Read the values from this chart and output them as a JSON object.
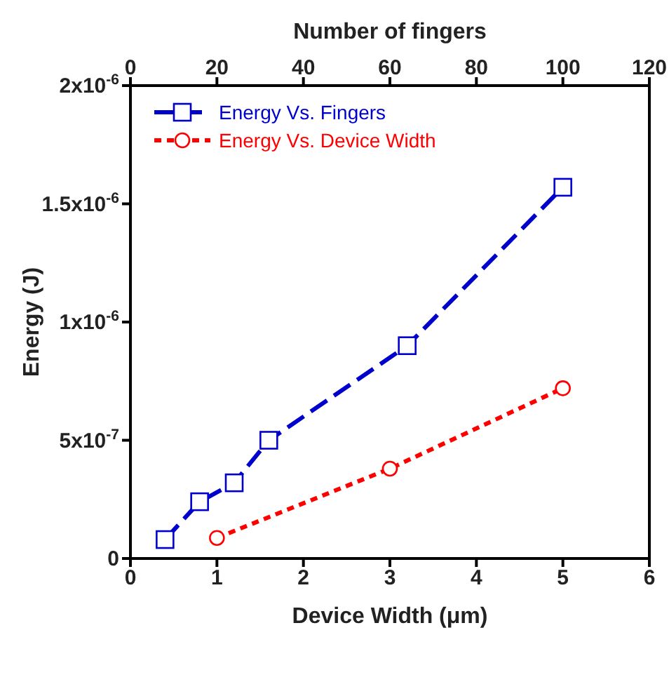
{
  "chart_data": {
    "type": "line",
    "xlabel": "Device Width (μm)",
    "x2label": "Number of fingers",
    "ylabel": "Energy (J)",
    "xlim": [
      0,
      6
    ],
    "xticks": [
      0,
      1,
      2,
      3,
      4,
      5,
      6
    ],
    "x2lim": [
      0,
      120
    ],
    "x2ticks": [
      0,
      20,
      40,
      60,
      80,
      100,
      120
    ],
    "ylim": [
      0,
      2e-06
    ],
    "yticks": [
      {
        "value": 0,
        "label": "0"
      },
      {
        "value": 5e-07,
        "label": "5x10$^{-7}$"
      },
      {
        "value": 1e-06,
        "label": "1x10$^{-6}$"
      },
      {
        "value": 1.5e-06,
        "label": "1.5x10$^{-6}$"
      },
      {
        "value": 2e-06,
        "label": "2x10$^{-6}$"
      }
    ],
    "legend": "top left",
    "series": [
      {
        "name": "Energy Vs. Fingers",
        "color": "#0000cc",
        "axis": "x2",
        "marker": "square",
        "line_style": "dashed",
        "x": [
          8,
          16,
          24,
          32,
          64,
          100
        ],
        "values": [
          8e-08,
          2.4e-07,
          3.2e-07,
          5e-07,
          9e-07,
          1.57e-06
        ]
      },
      {
        "name": "Energy Vs. Device Width",
        "color": "#ff0000",
        "marker": "circle",
        "line_style": "dotted",
        "x": [
          1,
          3,
          5
        ],
        "values": [
          8.7e-08,
          3.8e-07,
          7.2e-07
        ]
      }
    ]
  }
}
